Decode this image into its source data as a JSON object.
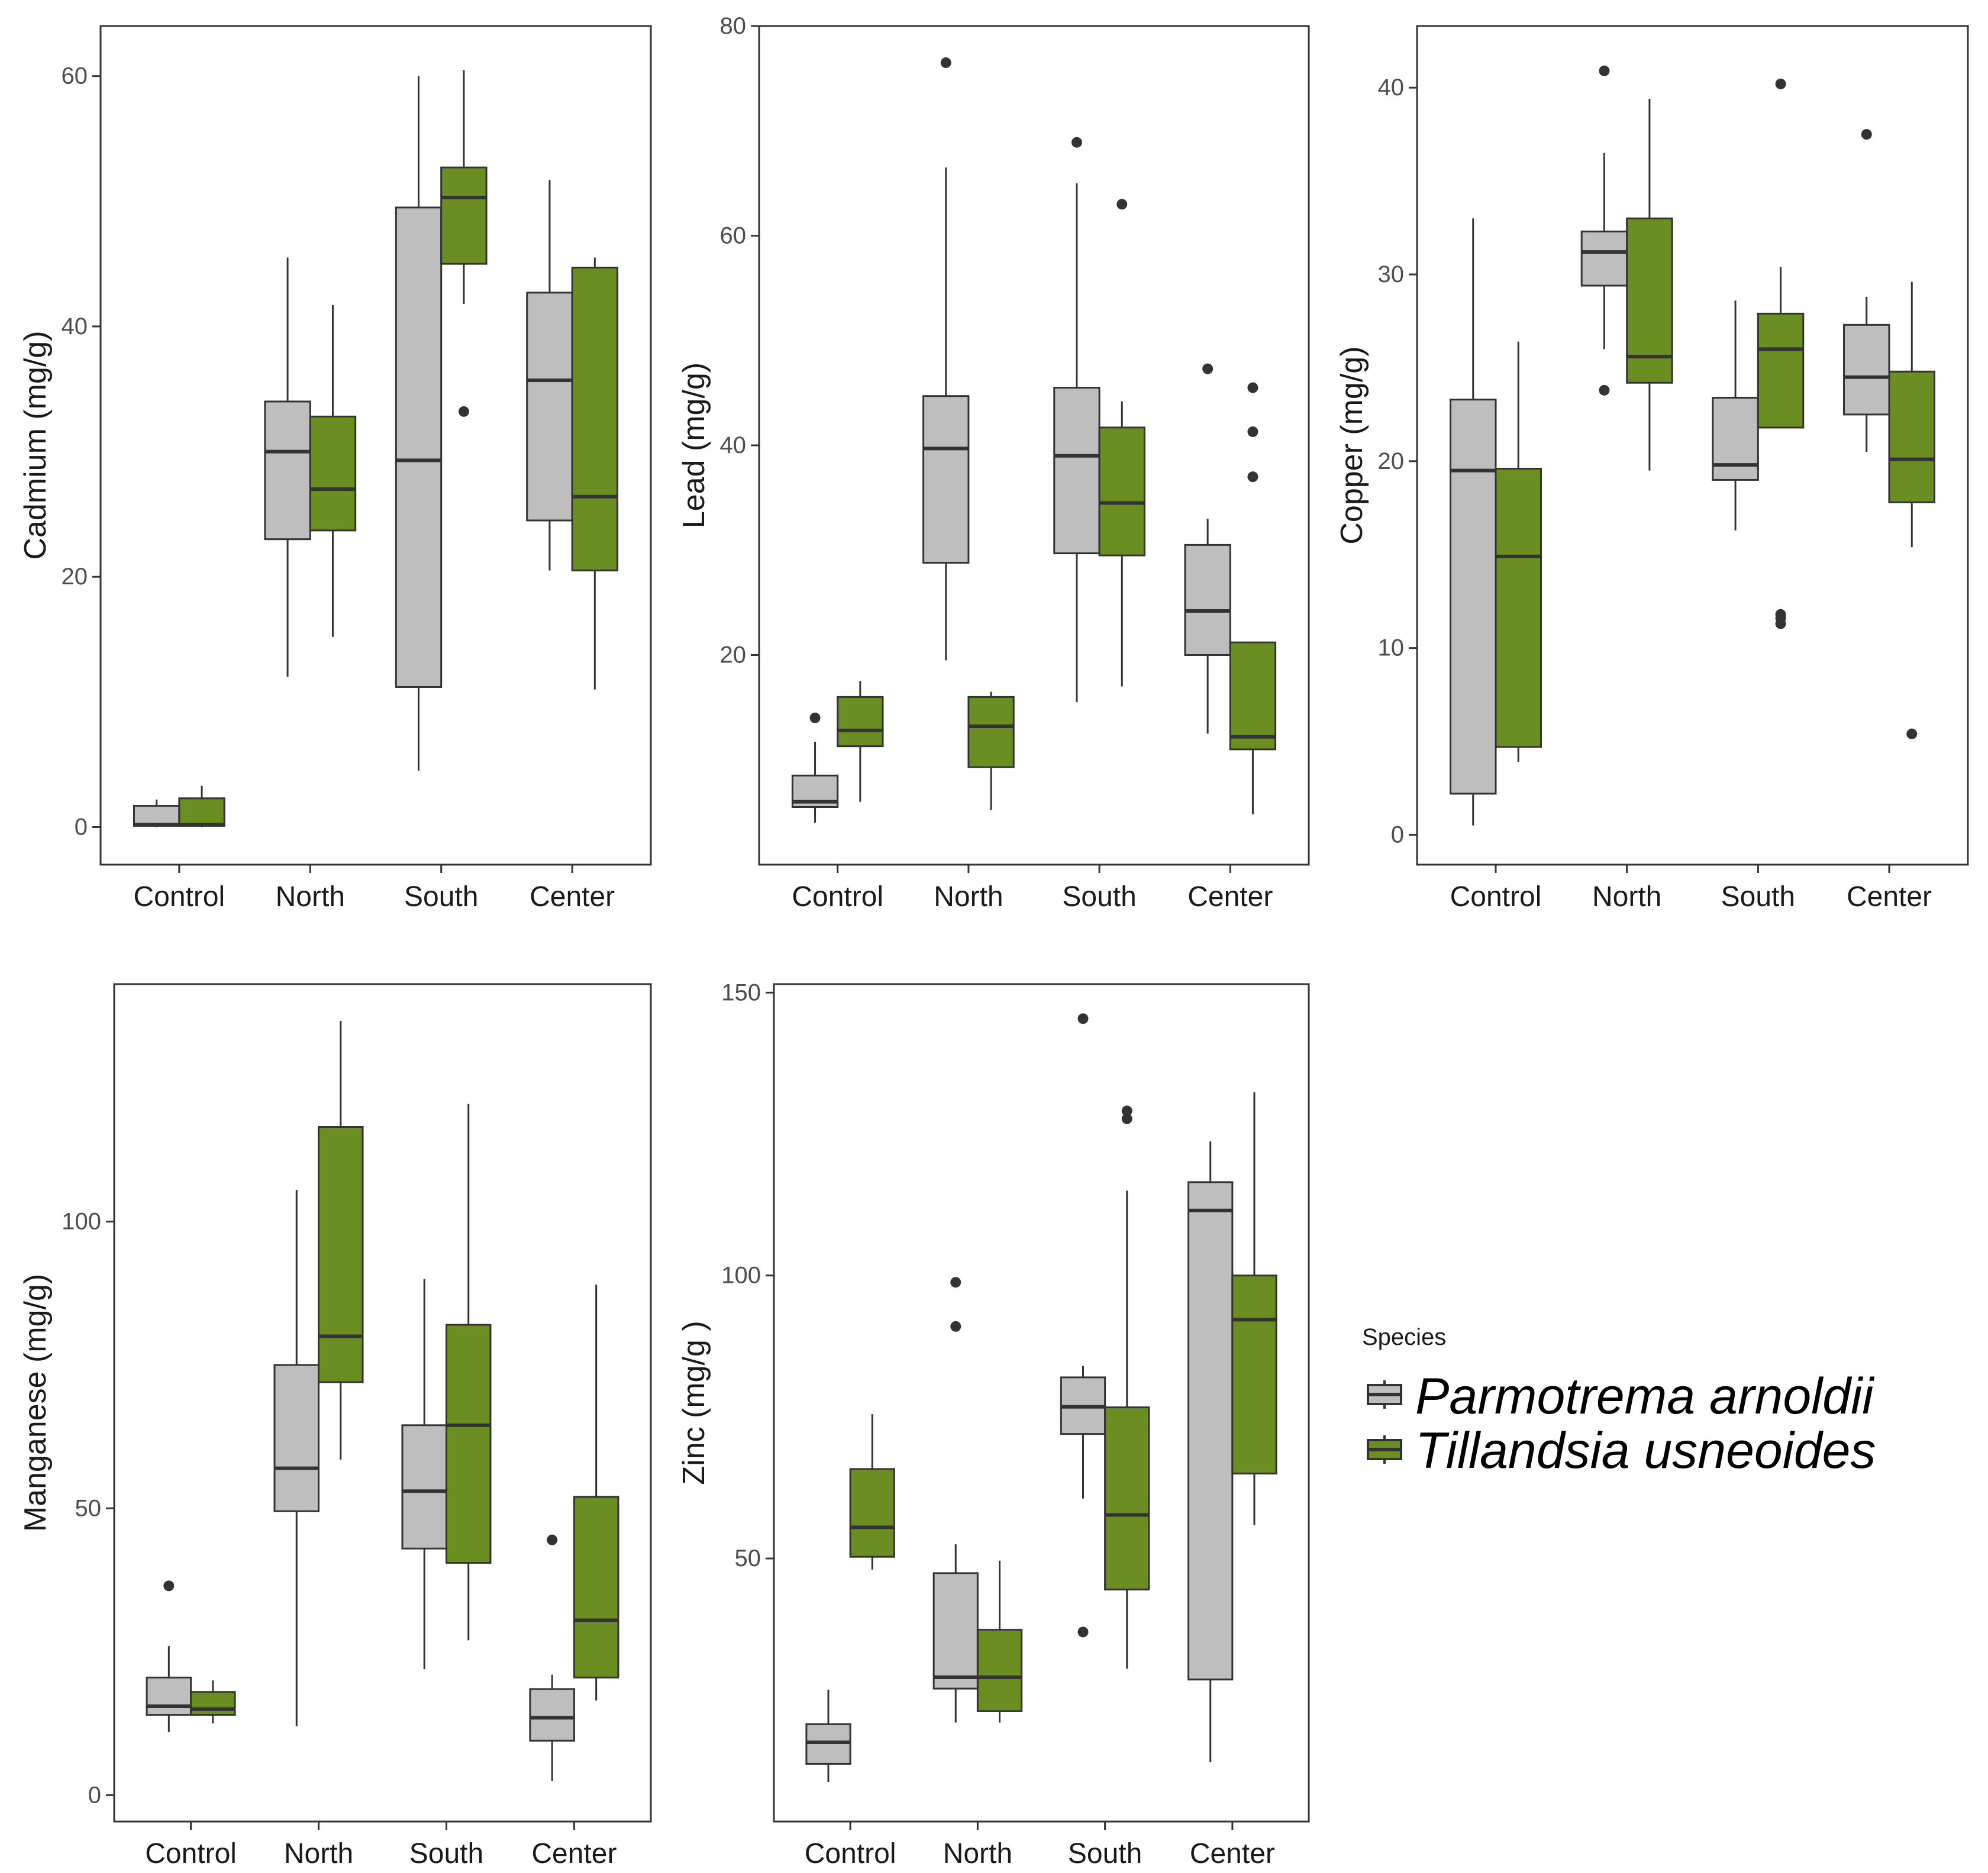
{
  "colors": {
    "series": [
      "#bebebe",
      "#6b8e23"
    ],
    "box_outline": "#333333",
    "panel_border": "#333333",
    "outlier": "#333333"
  },
  "legend": {
    "title": "Species",
    "entries": [
      "Parmotrema arnoldii",
      "Tillandsia usneoides"
    ]
  },
  "chart_data": [
    {
      "type": "boxplot",
      "ylabel": "Cadmium (mg/g)",
      "categories": [
        "Control",
        "North",
        "South",
        "Center"
      ],
      "yticks": [
        0,
        20,
        40,
        60
      ],
      "ylim": [
        -3,
        64
      ],
      "series": [
        {
          "name": "Parmotrema arnoldii",
          "boxes": [
            {
              "whisker_low": 0,
              "q1": 0.1,
              "median": 0.2,
              "q3": 1.7,
              "whisker_high": 2.2,
              "outliers": []
            },
            {
              "whisker_low": 12,
              "q1": 23,
              "median": 30,
              "q3": 34,
              "whisker_high": 45.5,
              "outliers": []
            },
            {
              "whisker_low": 4.5,
              "q1": 11.2,
              "median": 29.3,
              "q3": 49.5,
              "whisker_high": 60,
              "outliers": []
            },
            {
              "whisker_low": 20.5,
              "q1": 24.5,
              "median": 35.7,
              "q3": 42.7,
              "whisker_high": 51.7,
              "outliers": []
            }
          ]
        },
        {
          "name": "Tillandsia usneoides",
          "boxes": [
            {
              "whisker_low": 0,
              "q1": 0.1,
              "median": 0.2,
              "q3": 2.3,
              "whisker_high": 3.3,
              "outliers": []
            },
            {
              "whisker_low": 15.2,
              "q1": 23.7,
              "median": 27,
              "q3": 32.8,
              "whisker_high": 41.7,
              "outliers": []
            },
            {
              "whisker_low": 41.8,
              "q1": 45,
              "median": 50.3,
              "q3": 52.7,
              "whisker_high": 60.5,
              "outliers": [
                33.2
              ]
            },
            {
              "whisker_low": 11,
              "q1": 20.5,
              "median": 26.4,
              "q3": 44.7,
              "whisker_high": 45.5,
              "outliers": []
            }
          ]
        }
      ]
    },
    {
      "type": "boxplot",
      "ylabel": "Lead (mg/g)",
      "categories": [
        "Control",
        "North",
        "South",
        "Center"
      ],
      "yticks": [
        20,
        40,
        60,
        80
      ],
      "ylim": [
        0,
        80
      ],
      "series": [
        {
          "name": "Parmotrema arnoldii",
          "boxes": [
            {
              "whisker_low": 4,
              "q1": 5.5,
              "median": 6,
              "q3": 8.5,
              "whisker_high": 11.7,
              "outliers": [
                14
              ]
            },
            {
              "whisker_low": 19.5,
              "q1": 28.8,
              "median": 39.7,
              "q3": 44.7,
              "whisker_high": 66.5,
              "outliers": [
                76.5
              ]
            },
            {
              "whisker_low": 15.5,
              "q1": 29.7,
              "median": 39,
              "q3": 45.5,
              "whisker_high": 65,
              "outliers": [
                68.9
              ]
            },
            {
              "whisker_low": 12.5,
              "q1": 20,
              "median": 24.2,
              "q3": 30.5,
              "whisker_high": 33,
              "outliers": [
                47.3
              ]
            }
          ]
        },
        {
          "name": "Tillandsia usneoides",
          "boxes": [
            {
              "whisker_low": 6,
              "q1": 11.3,
              "median": 12.8,
              "q3": 16,
              "whisker_high": 17.5,
              "outliers": []
            },
            {
              "whisker_low": 5.2,
              "q1": 9.3,
              "median": 13.2,
              "q3": 16,
              "whisker_high": 16.5,
              "outliers": []
            },
            {
              "whisker_low": 17,
              "q1": 29.5,
              "median": 34.5,
              "q3": 41.7,
              "whisker_high": 44.2,
              "outliers": [
                63
              ]
            },
            {
              "whisker_low": 4.8,
              "q1": 11,
              "median": 12.2,
              "q3": 21.2,
              "whisker_high": 21.2,
              "outliers": [
                37,
                41.3,
                45.5
              ]
            }
          ]
        }
      ]
    },
    {
      "type": "boxplot",
      "ylabel": "Copper (mg/g)",
      "categories": [
        "Control",
        "North",
        "South",
        "Center"
      ],
      "yticks": [
        0,
        10,
        20,
        30,
        40
      ],
      "ylim": [
        -1.6,
        43.3
      ],
      "series": [
        {
          "name": "Parmotrema arnoldii",
          "boxes": [
            {
              "whisker_low": 0.5,
              "q1": 2.2,
              "median": 19.5,
              "q3": 23.3,
              "whisker_high": 33,
              "outliers": []
            },
            {
              "whisker_low": 26,
              "q1": 29.4,
              "median": 31.2,
              "q3": 32.3,
              "whisker_high": 36.5,
              "outliers": [
                23.8,
                40.9
              ]
            },
            {
              "whisker_low": 16.3,
              "q1": 19,
              "median": 19.8,
              "q3": 23.4,
              "whisker_high": 28.6,
              "outliers": []
            },
            {
              "whisker_low": 20.5,
              "q1": 22.5,
              "median": 24.5,
              "q3": 27.3,
              "whisker_high": 28.8,
              "outliers": [
                37.5
              ]
            }
          ]
        },
        {
          "name": "Tillandsia usneoides",
          "boxes": [
            {
              "whisker_low": 3.9,
              "q1": 4.7,
              "median": 14.9,
              "q3": 19.6,
              "whisker_high": 26.4,
              "outliers": []
            },
            {
              "whisker_low": 19.5,
              "q1": 24.2,
              "median": 25.6,
              "q3": 33,
              "whisker_high": 39.4,
              "outliers": []
            },
            {
              "whisker_low": 21.8,
              "q1": 21.8,
              "median": 26,
              "q3": 27.9,
              "whisker_high": 30.4,
              "outliers": [
                11.3,
                11.6,
                11.8,
                40.2
              ]
            },
            {
              "whisker_low": 15.4,
              "q1": 17.8,
              "median": 20.1,
              "q3": 24.8,
              "whisker_high": 29.6,
              "outliers": [
                5.4
              ]
            }
          ]
        }
      ]
    },
    {
      "type": "boxplot",
      "ylabel": "Manganese (mg/g)",
      "categories": [
        "Control",
        "North",
        "South",
        "Center"
      ],
      "yticks": [
        0,
        50,
        100
      ],
      "ylim": [
        -4.6,
        141.4
      ],
      "series": [
        {
          "name": "Parmotrema arnoldii",
          "boxes": [
            {
              "whisker_low": 11,
              "q1": 14,
              "median": 15.5,
              "q3": 20.5,
              "whisker_high": 26,
              "outliers": [
                36.5
              ]
            },
            {
              "whisker_low": 12,
              "q1": 49.5,
              "median": 57,
              "q3": 75,
              "whisker_high": 105.5,
              "outliers": []
            },
            {
              "whisker_low": 22,
              "q1": 43,
              "median": 53,
              "q3": 64.5,
              "whisker_high": 90,
              "outliers": []
            },
            {
              "whisker_low": 2.5,
              "q1": 9.5,
              "median": 13.5,
              "q3": 18.5,
              "whisker_high": 21,
              "outliers": [
                44.5
              ]
            }
          ]
        },
        {
          "name": "Tillandsia usneoides",
          "boxes": [
            {
              "whisker_low": 12.5,
              "q1": 14,
              "median": 15,
              "q3": 18,
              "whisker_high": 20,
              "outliers": []
            },
            {
              "whisker_low": 58.5,
              "q1": 72,
              "median": 80,
              "q3": 116.5,
              "whisker_high": 135,
              "outliers": []
            },
            {
              "whisker_low": 27,
              "q1": 40.5,
              "median": 64.5,
              "q3": 82,
              "whisker_high": 120.5,
              "outliers": []
            },
            {
              "whisker_low": 16.5,
              "q1": 20.5,
              "median": 30.5,
              "q3": 52,
              "whisker_high": 89,
              "outliers": []
            }
          ]
        }
      ]
    },
    {
      "type": "boxplot",
      "ylabel": "Zinc (mg/g )",
      "categories": [
        "Control",
        "North",
        "South",
        "Center"
      ],
      "yticks": [
        50,
        100,
        150
      ],
      "ylim": [
        3.5,
        151.5
      ],
      "series": [
        {
          "name": "Parmotrema arnoldii",
          "boxes": [
            {
              "whisker_low": 10.5,
              "q1": 13.7,
              "median": 17.5,
              "q3": 20.7,
              "whisker_high": 26.8,
              "outliers": []
            },
            {
              "whisker_low": 21,
              "q1": 27,
              "median": 29,
              "q3": 47.4,
              "whisker_high": 52.5,
              "outliers": [
                91,
                98.8
              ]
            },
            {
              "whisker_low": 60.6,
              "q1": 72,
              "median": 76.8,
              "q3": 82,
              "whisker_high": 84,
              "outliers": [
                37,
                145.4
              ]
            },
            {
              "whisker_low": 14,
              "q1": 28.6,
              "median": 111.5,
              "q3": 116.5,
              "whisker_high": 123.7,
              "outliers": []
            }
          ]
        },
        {
          "name": "Tillandsia usneoides",
          "boxes": [
            {
              "whisker_low": 48,
              "q1": 50.3,
              "median": 55.5,
              "q3": 65.8,
              "whisker_high": 75.5,
              "outliers": []
            },
            {
              "whisker_low": 21,
              "q1": 23,
              "median": 29,
              "q3": 37.4,
              "whisker_high": 49.6,
              "outliers": []
            },
            {
              "whisker_low": 30.5,
              "q1": 44.5,
              "median": 57.7,
              "q3": 76.7,
              "whisker_high": 115,
              "outliers": [
                127.7,
                129.1
              ]
            },
            {
              "whisker_low": 55.9,
              "q1": 65,
              "median": 92.2,
              "q3": 100,
              "whisker_high": 132.4,
              "outliers": []
            }
          ]
        }
      ]
    }
  ]
}
